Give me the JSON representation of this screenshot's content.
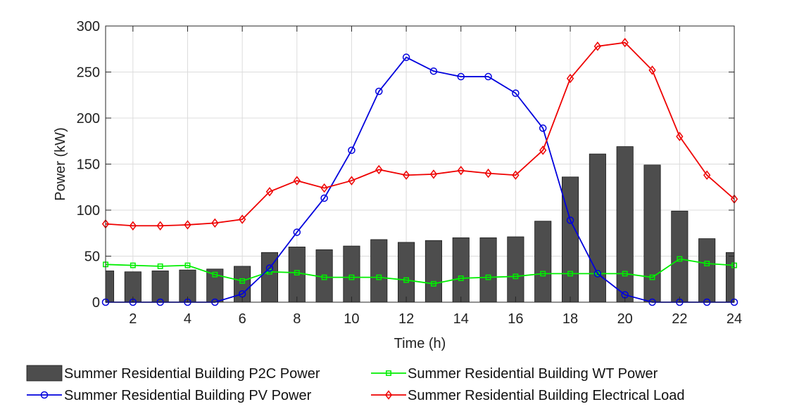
{
  "chart_data": {
    "type": "bar+line",
    "xlabel": "Time (h)",
    "ylabel": "Power (kW)",
    "xlim": [
      1,
      24
    ],
    "ylim": [
      0,
      300
    ],
    "x_ticks": [
      2,
      4,
      6,
      8,
      10,
      12,
      14,
      16,
      18,
      20,
      22,
      24
    ],
    "y_ticks": [
      0,
      50,
      100,
      150,
      200,
      250,
      300
    ],
    "grid": true,
    "legend_position": "bottom",
    "x": [
      1,
      2,
      3,
      4,
      5,
      6,
      7,
      8,
      9,
      10,
      11,
      12,
      13,
      14,
      15,
      16,
      17,
      18,
      19,
      20,
      21,
      22,
      23,
      24
    ],
    "series": [
      {
        "name": "Summer Residential Building P2C Power",
        "kind": "bar",
        "color": "#4d4d4d",
        "values": [
          34,
          33,
          34,
          35,
          36,
          39,
          54,
          60,
          57,
          61,
          68,
          65,
          67,
          70,
          70,
          71,
          88,
          136,
          161,
          169,
          149,
          99,
          69,
          54
        ]
      },
      {
        "name": "Summer Residential Building WT Power",
        "kind": "line",
        "marker": "square",
        "color": "#00ee00",
        "values": [
          41,
          40,
          39,
          40,
          30,
          23,
          33,
          32,
          27,
          27,
          27,
          24,
          20,
          26,
          27,
          28,
          31,
          31,
          31,
          31,
          27,
          47,
          42,
          40
        ]
      },
      {
        "name": "Summer Residential Building PV Power",
        "kind": "line",
        "marker": "circle",
        "color": "#0000dd",
        "values": [
          0,
          0,
          0,
          0,
          0,
          9,
          37,
          76,
          113,
          165,
          229,
          266,
          251,
          245,
          245,
          227,
          189,
          89,
          31,
          8,
          0,
          0,
          0,
          0
        ]
      },
      {
        "name": "Summer Residential Building Electrical Load",
        "kind": "line",
        "marker": "diamond",
        "color": "#ee0000",
        "values": [
          85,
          83,
          83,
          84,
          86,
          90,
          120,
          132,
          124,
          132,
          144,
          138,
          139,
          143,
          140,
          138,
          165,
          243,
          278,
          282,
          252,
          180,
          138,
          112
        ]
      }
    ]
  }
}
